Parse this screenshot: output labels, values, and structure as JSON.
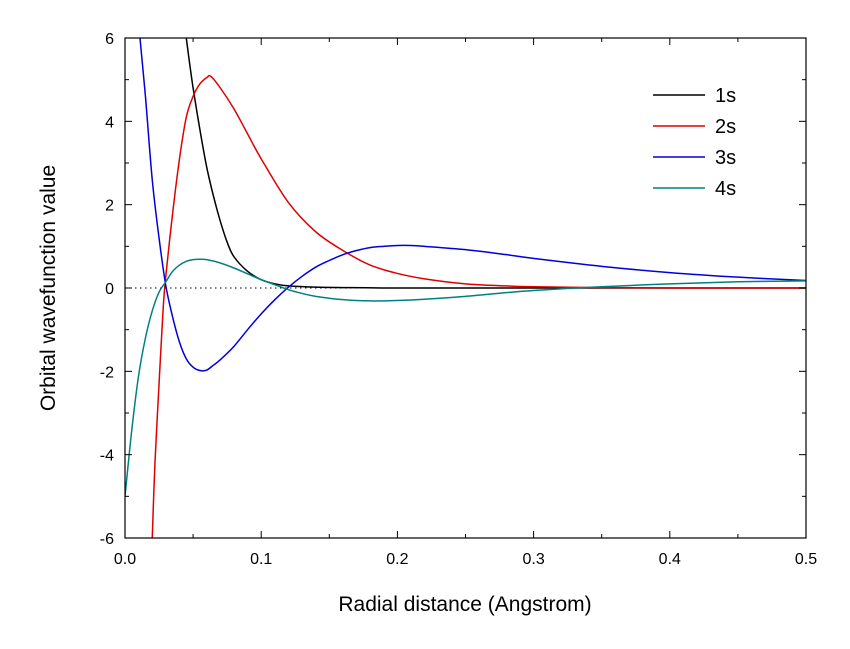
{
  "chart_data": {
    "type": "line",
    "title": "",
    "xlabel": "Radial distance (Angstrom)",
    "ylabel": "Orbital wavefunction value",
    "xlim": [
      0.0,
      0.5
    ],
    "ylim": [
      -6,
      6
    ],
    "x_ticks": [
      0.0,
      0.1,
      0.2,
      0.3,
      0.4,
      0.5
    ],
    "x_tick_labels": [
      "0.0",
      "0.1",
      "0.2",
      "0.3",
      "0.4",
      "0.5"
    ],
    "y_ticks": [
      -6,
      -4,
      -2,
      0,
      2,
      4,
      6
    ],
    "y_tick_labels": [
      "-6",
      "-4",
      "-2",
      "0",
      "2",
      "4",
      "6"
    ],
    "grid": false,
    "zero_reference_line": "dotted",
    "legend_position": "top-right",
    "series": [
      {
        "name": "1s",
        "color": "#000000",
        "x": [
          0.045,
          0.047,
          0.05,
          0.055,
          0.06,
          0.065,
          0.07,
          0.075,
          0.08,
          0.09,
          0.1,
          0.11,
          0.12,
          0.14,
          0.16,
          0.2,
          0.3,
          0.4,
          0.5
        ],
        "y": [
          6.0,
          5.5,
          4.8,
          3.8,
          2.9,
          2.2,
          1.6,
          1.1,
          0.75,
          0.4,
          0.2,
          0.1,
          0.05,
          0.02,
          0.01,
          0.0,
          0.0,
          0.0,
          0.0
        ]
      },
      {
        "name": "2s",
        "color": "#e00000",
        "x": [
          0.02,
          0.022,
          0.025,
          0.028,
          0.03,
          0.035,
          0.04,
          0.045,
          0.05,
          0.055,
          0.06,
          0.063,
          0.07,
          0.08,
          0.09,
          0.1,
          0.12,
          0.14,
          0.16,
          0.18,
          0.2,
          0.22,
          0.25,
          0.28,
          0.3,
          0.35,
          0.4,
          0.45,
          0.5
        ],
        "y": [
          -6.0,
          -4.2,
          -2.3,
          -0.5,
          0.3,
          1.8,
          3.1,
          4.1,
          4.6,
          4.9,
          5.05,
          5.08,
          4.8,
          4.3,
          3.7,
          3.1,
          2.05,
          1.35,
          0.9,
          0.55,
          0.35,
          0.22,
          0.1,
          0.05,
          0.03,
          0.01,
          0.0,
          0.0,
          0.0
        ]
      },
      {
        "name": "3s",
        "color": "#0000dd",
        "x": [
          0.011,
          0.015,
          0.02,
          0.025,
          0.03,
          0.035,
          0.04,
          0.045,
          0.05,
          0.055,
          0.06,
          0.065,
          0.07,
          0.08,
          0.09,
          0.1,
          0.11,
          0.12,
          0.13,
          0.14,
          0.15,
          0.16,
          0.17,
          0.18,
          0.19,
          0.2,
          0.21,
          0.22,
          0.25,
          0.28,
          0.3,
          0.35,
          0.4,
          0.45,
          0.5
        ],
        "y": [
          6.0,
          4.6,
          2.6,
          1.2,
          0.05,
          -0.7,
          -1.3,
          -1.7,
          -1.9,
          -1.98,
          -1.97,
          -1.85,
          -1.72,
          -1.4,
          -1.0,
          -0.62,
          -0.28,
          0.02,
          0.28,
          0.5,
          0.66,
          0.8,
          0.9,
          0.97,
          1.0,
          1.02,
          1.02,
          1.0,
          0.92,
          0.8,
          0.71,
          0.52,
          0.37,
          0.26,
          0.18
        ]
      },
      {
        "name": "4s",
        "color": "#008080",
        "x": [
          0.0,
          0.005,
          0.01,
          0.015,
          0.02,
          0.025,
          0.03,
          0.035,
          0.04,
          0.045,
          0.05,
          0.055,
          0.06,
          0.07,
          0.08,
          0.09,
          0.1,
          0.11,
          0.12,
          0.13,
          0.14,
          0.16,
          0.18,
          0.2,
          0.22,
          0.25,
          0.28,
          0.3,
          0.33,
          0.35,
          0.4,
          0.45,
          0.5
        ],
        "y": [
          -5.0,
          -3.4,
          -2.1,
          -1.2,
          -0.55,
          -0.1,
          0.15,
          0.4,
          0.55,
          0.64,
          0.68,
          0.69,
          0.68,
          0.6,
          0.48,
          0.34,
          0.2,
          0.08,
          -0.04,
          -0.13,
          -0.2,
          -0.28,
          -0.31,
          -0.3,
          -0.27,
          -0.2,
          -0.11,
          -0.06,
          0.0,
          0.03,
          0.1,
          0.15,
          0.17
        ]
      }
    ]
  }
}
